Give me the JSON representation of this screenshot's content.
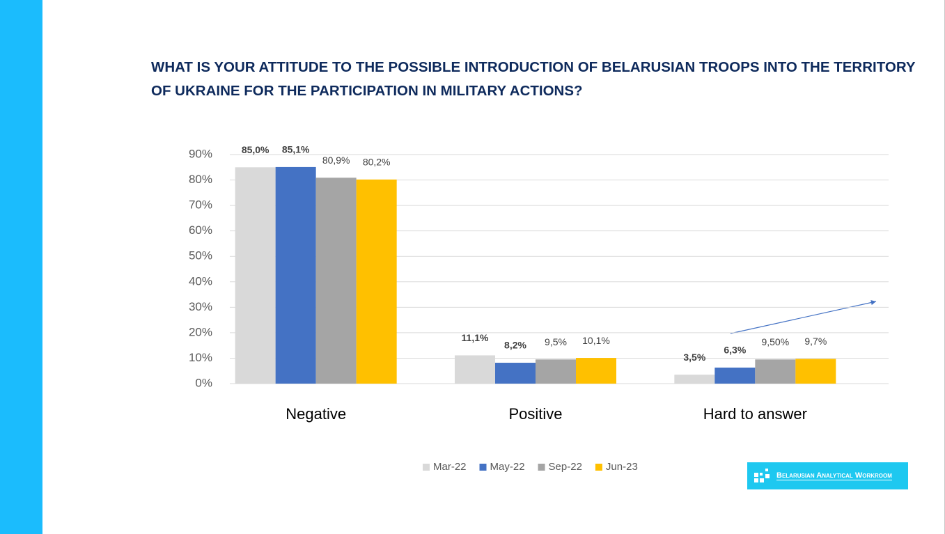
{
  "chart_data": {
    "type": "bar",
    "title": "WHAT IS YOUR ATTITUDE TO THE POSSIBLE INTRODUCTION OF BELARUSIAN TROOPS INTO THE TERRITORY OF UKRAINE FOR THE PARTICIPATION IN MILITARY ACTIONS?",
    "categories": [
      "Negative",
      "Positive",
      "Hard to answer"
    ],
    "series": [
      {
        "name": "Mar-22",
        "color": "#d9d9d9",
        "values": [
          85.0,
          11.1,
          3.5
        ],
        "value_labels": [
          "85,0%",
          "11,1%",
          "3,5%"
        ]
      },
      {
        "name": "May-22",
        "color": "#4472c4",
        "values": [
          85.1,
          8.2,
          6.3
        ],
        "value_labels": [
          "85,1%",
          "8,2%",
          "6,3%"
        ]
      },
      {
        "name": "Sep-22",
        "color": "#a5a5a5",
        "values": [
          80.9,
          9.5,
          9.5
        ],
        "value_labels": [
          "80,9%",
          "9,5%",
          "9,50%"
        ]
      },
      {
        "name": "Jun-23",
        "color": "#ffc000",
        "values": [
          80.2,
          10.1,
          9.7
        ],
        "value_labels": [
          "80,2%",
          "10,1%",
          "9,7%"
        ]
      }
    ],
    "ylim": [
      0,
      90
    ],
    "yticks": [
      {
        "value": 0,
        "label": "0%"
      },
      {
        "value": 10,
        "label": "10%"
      },
      {
        "value": 20,
        "label": "20%"
      },
      {
        "value": 30,
        "label": "30%"
      },
      {
        "value": 40,
        "label": "40%"
      },
      {
        "value": 50,
        "label": "50%"
      },
      {
        "value": 60,
        "label": "60%"
      },
      {
        "value": 70,
        "label": "70%"
      },
      {
        "value": 80,
        "label": "80%"
      },
      {
        "value": 90,
        "label": "90%"
      }
    ],
    "grid": true
  },
  "logo": "Belarusian Analytical Workroom"
}
